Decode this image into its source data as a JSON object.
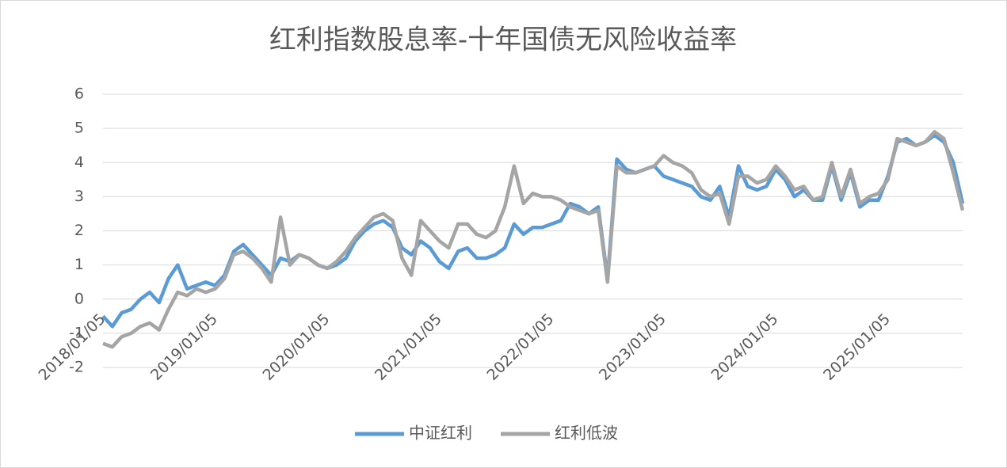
{
  "chart_data": {
    "type": "line",
    "title": "红利指数股息率-十年国债无风险收益率",
    "categories": [
      "2018/01/05",
      null,
      null,
      null,
      null,
      null,
      null,
      null,
      null,
      null,
      null,
      null,
      "2019/01/05",
      null,
      null,
      null,
      null,
      null,
      null,
      null,
      null,
      null,
      null,
      null,
      "2020/01/05",
      null,
      null,
      null,
      null,
      null,
      null,
      null,
      null,
      null,
      null,
      null,
      "2021/01/05",
      null,
      null,
      null,
      null,
      null,
      null,
      null,
      null,
      null,
      null,
      null,
      "2022/01/05",
      null,
      null,
      null,
      null,
      null,
      null,
      null,
      null,
      null,
      null,
      null,
      "2023/01/05",
      null,
      null,
      null,
      null,
      null,
      null,
      null,
      null,
      null,
      null,
      null,
      "2024/01/05",
      null,
      null,
      null,
      null,
      null,
      null,
      null,
      null,
      null,
      null,
      null,
      "2025/01/05",
      null,
      null,
      null,
      null,
      null,
      null,
      null,
      null
    ],
    "series": [
      {
        "name": "中证红利",
        "color": "#5b9bd5",
        "values": [
          -0.5,
          -0.8,
          -0.4,
          -0.3,
          0.0,
          0.2,
          -0.1,
          0.6,
          1.0,
          0.3,
          0.4,
          0.5,
          0.4,
          0.7,
          1.4,
          1.6,
          1.3,
          1.0,
          0.7,
          1.2,
          1.1,
          1.3,
          1.2,
          1.0,
          0.9,
          1.0,
          1.2,
          1.7,
          2.0,
          2.2,
          2.3,
          2.1,
          1.5,
          1.3,
          1.7,
          1.5,
          1.1,
          0.9,
          1.4,
          1.5,
          1.2,
          1.2,
          1.3,
          1.5,
          2.2,
          1.9,
          2.1,
          2.1,
          2.2,
          2.3,
          2.8,
          2.7,
          2.5,
          2.7,
          0.6,
          4.1,
          3.8,
          3.7,
          3.8,
          3.9,
          3.6,
          3.5,
          3.4,
          3.3,
          3.0,
          2.9,
          3.3,
          2.4,
          3.9,
          3.3,
          3.2,
          3.3,
          3.8,
          3.5,
          3.0,
          3.2,
          2.9,
          2.9,
          3.9,
          2.9,
          3.7,
          2.7,
          2.9,
          2.9,
          3.6,
          4.6,
          4.7,
          4.5,
          4.6,
          4.8,
          4.6,
          4.0,
          2.8
        ]
      },
      {
        "name": "红利低波",
        "color": "#a5a5a5",
        "values": [
          -1.3,
          -1.4,
          -1.1,
          -1.0,
          -0.8,
          -0.7,
          -0.9,
          -0.3,
          0.2,
          0.1,
          0.3,
          0.2,
          0.3,
          0.6,
          1.3,
          1.4,
          1.2,
          0.9,
          0.5,
          2.4,
          1.0,
          1.3,
          1.2,
          1.0,
          0.9,
          1.1,
          1.4,
          1.8,
          2.1,
          2.4,
          2.5,
          2.3,
          1.2,
          0.7,
          2.3,
          2.0,
          1.7,
          1.5,
          2.2,
          2.2,
          1.9,
          1.8,
          2.0,
          2.7,
          3.9,
          2.8,
          3.1,
          3.0,
          3.0,
          2.9,
          2.7,
          2.6,
          2.5,
          2.6,
          0.5,
          3.9,
          3.7,
          3.7,
          3.8,
          3.9,
          4.2,
          4.0,
          3.9,
          3.7,
          3.2,
          3.0,
          3.1,
          2.2,
          3.6,
          3.6,
          3.4,
          3.5,
          3.9,
          3.6,
          3.2,
          3.3,
          2.9,
          3.0,
          4.0,
          3.0,
          3.8,
          2.8,
          3.0,
          3.1,
          3.5,
          4.7,
          4.6,
          4.5,
          4.6,
          4.9,
          4.7,
          3.7,
          2.6
        ]
      }
    ],
    "ylim": [
      -2,
      6
    ],
    "yticks": [
      -2,
      -1,
      0,
      1,
      2,
      3,
      4,
      5,
      6
    ],
    "grid": true,
    "legend": "bottom"
  }
}
